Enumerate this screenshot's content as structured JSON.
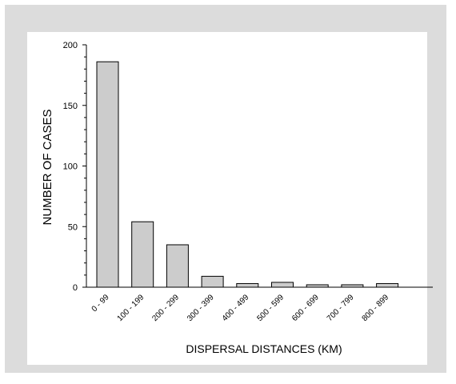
{
  "chart_data": {
    "type": "bar",
    "title": "",
    "xlabel": "DISPERSAL DISTANCES (KM)",
    "ylabel": "NUMBER OF CASES",
    "categories": [
      "0 - 99",
      "100 - 199",
      "200 - 299",
      "300 - 399",
      "400 - 499",
      "500 - 599",
      "600 - 699",
      "700 - 799",
      "800 - 899"
    ],
    "values": [
      186,
      54,
      35,
      9,
      3,
      4,
      2,
      2,
      3
    ],
    "ylim": [
      0,
      200
    ],
    "yticks": [
      0,
      50,
      100,
      150,
      200
    ],
    "y_minor_step": 10,
    "grid": false,
    "bar_color": "#cccccc",
    "bar_edge_color": "#000000",
    "frame_color": "#dcdcdc"
  }
}
